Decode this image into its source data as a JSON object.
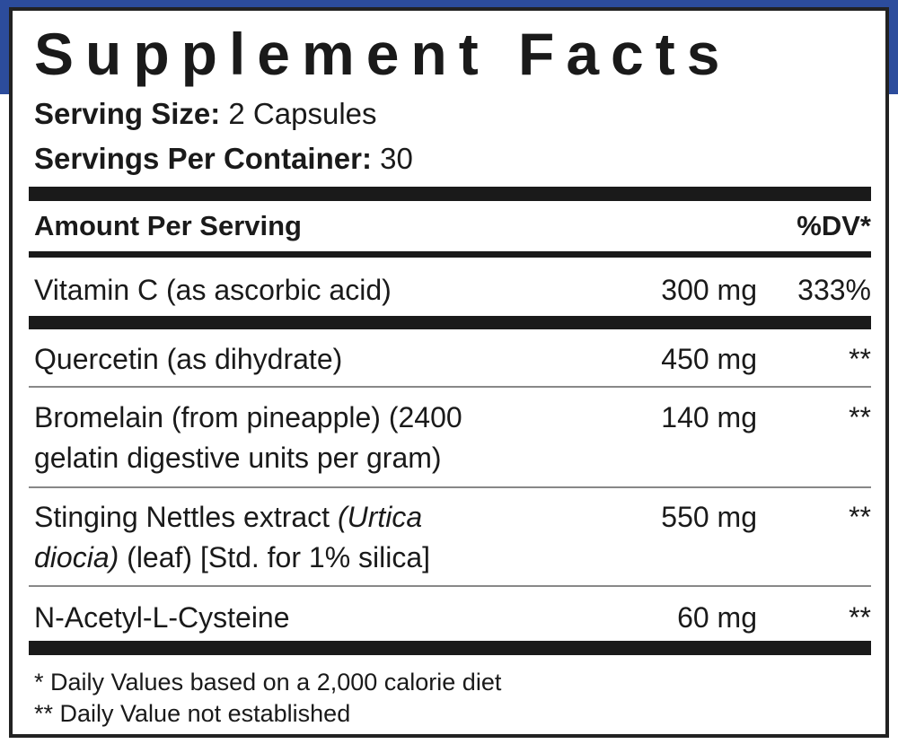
{
  "colors": {
    "background_band": "#2c4c9c",
    "label_border": "#222222",
    "rule": "#1a1a1a"
  },
  "title": "Supplement Facts",
  "serving_size": {
    "label": "Serving Size:",
    "value": "2 Capsules"
  },
  "servings_per_container": {
    "label": "Servings Per Container:",
    "value": "30"
  },
  "header": {
    "amount": "Amount Per Serving",
    "dv": "%DV*"
  },
  "rows": [
    {
      "name_line1": "Vitamin C (as ascorbic acid)",
      "amount": "300 mg",
      "dv": "333%"
    },
    {
      "name_line1": "Quercetin (as dihydrate)",
      "amount": "450 mg",
      "dv": "**"
    },
    {
      "name_line1": "Bromelain (from pineapple) (2400",
      "name_line2": "gelatin digestive units per gram)",
      "amount": "140 mg",
      "dv": "**"
    },
    {
      "name_line1_a": "Stinging Nettles extract ",
      "name_line1_b": "(Urtica",
      "name_line2_a": "diocia)",
      "name_line2_b": " (leaf) [Std. for 1% silica]",
      "amount": "550 mg",
      "dv": "**"
    },
    {
      "name_line1": "N-Acetyl-L-Cysteine",
      "amount": "60 mg",
      "dv": "**"
    }
  ],
  "footnotes": [
    "* Daily Values based on a 2,000 calorie diet",
    "** Daily Value not established"
  ]
}
